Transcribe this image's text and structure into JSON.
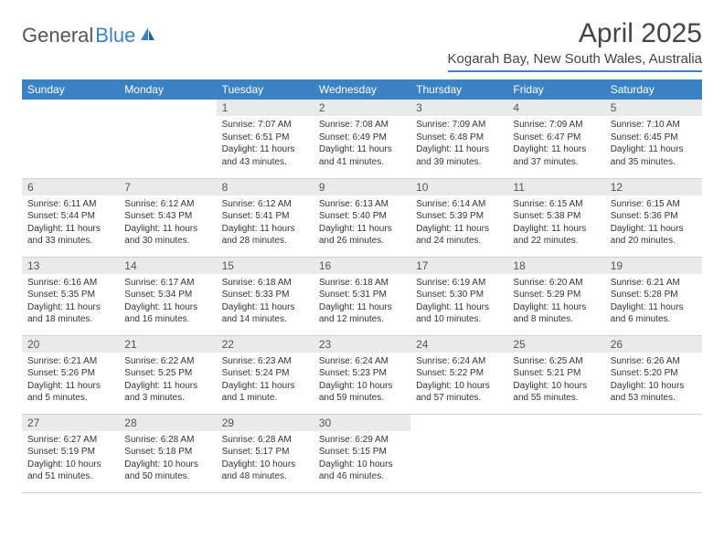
{
  "logo": {
    "text1": "General",
    "text2": "Blue"
  },
  "title": "April 2025",
  "location": "Kogarah Bay, New South Wales, Australia",
  "colors": {
    "header_bg": "#3b82c4",
    "header_text": "#ffffff",
    "daynum_bg": "#e8eaec",
    "border": "#d0d0d0",
    "body_bg": "#ffffff"
  },
  "weekdays": [
    "Sunday",
    "Monday",
    "Tuesday",
    "Wednesday",
    "Thursday",
    "Friday",
    "Saturday"
  ],
  "leading_blanks": 2,
  "days": [
    {
      "n": "1",
      "sunrise": "Sunrise: 7:07 AM",
      "sunset": "Sunset: 6:51 PM",
      "daylight": "Daylight: 11 hours and 43 minutes."
    },
    {
      "n": "2",
      "sunrise": "Sunrise: 7:08 AM",
      "sunset": "Sunset: 6:49 PM",
      "daylight": "Daylight: 11 hours and 41 minutes."
    },
    {
      "n": "3",
      "sunrise": "Sunrise: 7:09 AM",
      "sunset": "Sunset: 6:48 PM",
      "daylight": "Daylight: 11 hours and 39 minutes."
    },
    {
      "n": "4",
      "sunrise": "Sunrise: 7:09 AM",
      "sunset": "Sunset: 6:47 PM",
      "daylight": "Daylight: 11 hours and 37 minutes."
    },
    {
      "n": "5",
      "sunrise": "Sunrise: 7:10 AM",
      "sunset": "Sunset: 6:45 PM",
      "daylight": "Daylight: 11 hours and 35 minutes."
    },
    {
      "n": "6",
      "sunrise": "Sunrise: 6:11 AM",
      "sunset": "Sunset: 5:44 PM",
      "daylight": "Daylight: 11 hours and 33 minutes."
    },
    {
      "n": "7",
      "sunrise": "Sunrise: 6:12 AM",
      "sunset": "Sunset: 5:43 PM",
      "daylight": "Daylight: 11 hours and 30 minutes."
    },
    {
      "n": "8",
      "sunrise": "Sunrise: 6:12 AM",
      "sunset": "Sunset: 5:41 PM",
      "daylight": "Daylight: 11 hours and 28 minutes."
    },
    {
      "n": "9",
      "sunrise": "Sunrise: 6:13 AM",
      "sunset": "Sunset: 5:40 PM",
      "daylight": "Daylight: 11 hours and 26 minutes."
    },
    {
      "n": "10",
      "sunrise": "Sunrise: 6:14 AM",
      "sunset": "Sunset: 5:39 PM",
      "daylight": "Daylight: 11 hours and 24 minutes."
    },
    {
      "n": "11",
      "sunrise": "Sunrise: 6:15 AM",
      "sunset": "Sunset: 5:38 PM",
      "daylight": "Daylight: 11 hours and 22 minutes."
    },
    {
      "n": "12",
      "sunrise": "Sunrise: 6:15 AM",
      "sunset": "Sunset: 5:36 PM",
      "daylight": "Daylight: 11 hours and 20 minutes."
    },
    {
      "n": "13",
      "sunrise": "Sunrise: 6:16 AM",
      "sunset": "Sunset: 5:35 PM",
      "daylight": "Daylight: 11 hours and 18 minutes."
    },
    {
      "n": "14",
      "sunrise": "Sunrise: 6:17 AM",
      "sunset": "Sunset: 5:34 PM",
      "daylight": "Daylight: 11 hours and 16 minutes."
    },
    {
      "n": "15",
      "sunrise": "Sunrise: 6:18 AM",
      "sunset": "Sunset: 5:33 PM",
      "daylight": "Daylight: 11 hours and 14 minutes."
    },
    {
      "n": "16",
      "sunrise": "Sunrise: 6:18 AM",
      "sunset": "Sunset: 5:31 PM",
      "daylight": "Daylight: 11 hours and 12 minutes."
    },
    {
      "n": "17",
      "sunrise": "Sunrise: 6:19 AM",
      "sunset": "Sunset: 5:30 PM",
      "daylight": "Daylight: 11 hours and 10 minutes."
    },
    {
      "n": "18",
      "sunrise": "Sunrise: 6:20 AM",
      "sunset": "Sunset: 5:29 PM",
      "daylight": "Daylight: 11 hours and 8 minutes."
    },
    {
      "n": "19",
      "sunrise": "Sunrise: 6:21 AM",
      "sunset": "Sunset: 5:28 PM",
      "daylight": "Daylight: 11 hours and 6 minutes."
    },
    {
      "n": "20",
      "sunrise": "Sunrise: 6:21 AM",
      "sunset": "Sunset: 5:26 PM",
      "daylight": "Daylight: 11 hours and 5 minutes."
    },
    {
      "n": "21",
      "sunrise": "Sunrise: 6:22 AM",
      "sunset": "Sunset: 5:25 PM",
      "daylight": "Daylight: 11 hours and 3 minutes."
    },
    {
      "n": "22",
      "sunrise": "Sunrise: 6:23 AM",
      "sunset": "Sunset: 5:24 PM",
      "daylight": "Daylight: 11 hours and 1 minute."
    },
    {
      "n": "23",
      "sunrise": "Sunrise: 6:24 AM",
      "sunset": "Sunset: 5:23 PM",
      "daylight": "Daylight: 10 hours and 59 minutes."
    },
    {
      "n": "24",
      "sunrise": "Sunrise: 6:24 AM",
      "sunset": "Sunset: 5:22 PM",
      "daylight": "Daylight: 10 hours and 57 minutes."
    },
    {
      "n": "25",
      "sunrise": "Sunrise: 6:25 AM",
      "sunset": "Sunset: 5:21 PM",
      "daylight": "Daylight: 10 hours and 55 minutes."
    },
    {
      "n": "26",
      "sunrise": "Sunrise: 6:26 AM",
      "sunset": "Sunset: 5:20 PM",
      "daylight": "Daylight: 10 hours and 53 minutes."
    },
    {
      "n": "27",
      "sunrise": "Sunrise: 6:27 AM",
      "sunset": "Sunset: 5:19 PM",
      "daylight": "Daylight: 10 hours and 51 minutes."
    },
    {
      "n": "28",
      "sunrise": "Sunrise: 6:28 AM",
      "sunset": "Sunset: 5:18 PM",
      "daylight": "Daylight: 10 hours and 50 minutes."
    },
    {
      "n": "29",
      "sunrise": "Sunrise: 6:28 AM",
      "sunset": "Sunset: 5:17 PM",
      "daylight": "Daylight: 10 hours and 48 minutes."
    },
    {
      "n": "30",
      "sunrise": "Sunrise: 6:29 AM",
      "sunset": "Sunset: 5:15 PM",
      "daylight": "Daylight: 10 hours and 46 minutes."
    }
  ]
}
